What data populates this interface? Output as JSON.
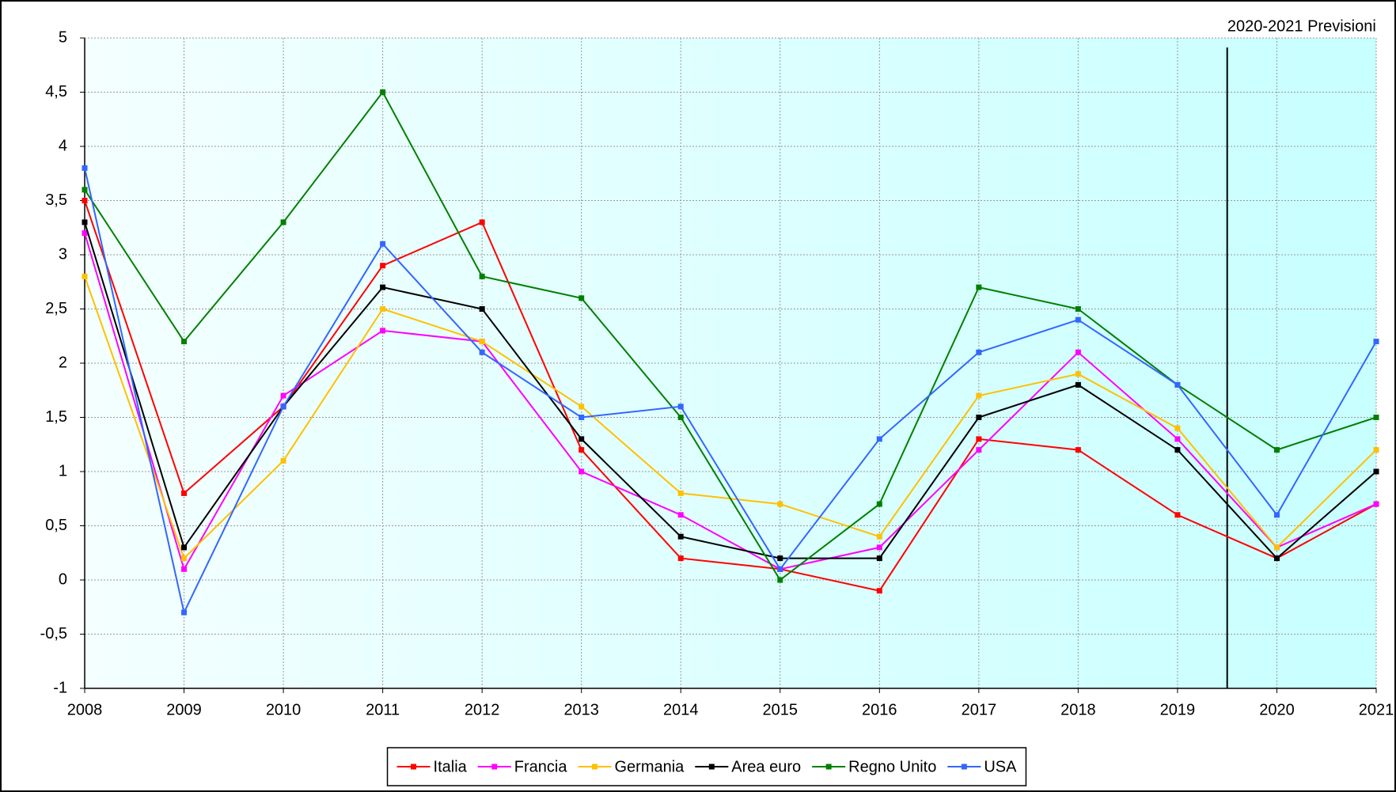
{
  "chart_data": {
    "type": "line",
    "x": [
      2008,
      2009,
      2010,
      2011,
      2012,
      2013,
      2014,
      2015,
      2016,
      2017,
      2018,
      2019,
      2020,
      2021
    ],
    "xlim": [
      2008,
      2021
    ],
    "xticks": [
      2008,
      2009,
      2010,
      2011,
      2012,
      2013,
      2014,
      2015,
      2016,
      2017,
      2018,
      2019,
      2020,
      2021
    ],
    "ylim": [
      -1,
      5
    ],
    "yticks": [
      -1,
      {
        "value": -0.5,
        "label": "-0,5"
      },
      0,
      {
        "value": 0.5,
        "label": "0,5"
      },
      1,
      {
        "value": 1.5,
        "label": "1,5"
      },
      2,
      {
        "value": 2.5,
        "label": "2,5"
      },
      3,
      {
        "value": 3.5,
        "label": "3,5"
      },
      4,
      {
        "value": 4.5,
        "label": "4,5"
      },
      5
    ],
    "grid": true,
    "legend": "bottom",
    "annotation": {
      "text": "2020-2021 Previsioni",
      "x": 2019.5
    },
    "series": [
      {
        "name": "Italia",
        "color": "#ff0000",
        "values": [
          3.5,
          0.8,
          1.6,
          2.9,
          3.3,
          1.2,
          0.2,
          0.1,
          -0.1,
          1.3,
          1.2,
          0.6,
          0.2,
          0.7
        ]
      },
      {
        "name": "Francia",
        "color": "#ff00ff",
        "values": [
          3.2,
          0.1,
          1.7,
          2.3,
          2.2,
          1.0,
          0.6,
          0.1,
          0.3,
          1.2,
          2.1,
          1.3,
          0.3,
          0.7
        ]
      },
      {
        "name": "Germania",
        "color": "#ffc000",
        "values": [
          2.8,
          0.2,
          1.1,
          2.5,
          2.2,
          1.6,
          0.8,
          0.7,
          0.4,
          1.7,
          1.9,
          1.4,
          0.3,
          1.2
        ]
      },
      {
        "name": "Area euro",
        "color": "#000000",
        "values": [
          3.3,
          0.3,
          1.6,
          2.7,
          2.5,
          1.3,
          0.4,
          0.2,
          0.2,
          1.5,
          1.8,
          1.2,
          0.2,
          1.0
        ]
      },
      {
        "name": "Regno Unito",
        "color": "#008000",
        "values": [
          3.6,
          2.2,
          3.3,
          4.5,
          2.8,
          2.6,
          1.5,
          0.0,
          0.7,
          2.7,
          2.5,
          1.8,
          1.2,
          1.5
        ]
      },
      {
        "name": "USA",
        "color": "#3366ff",
        "values": [
          3.8,
          -0.3,
          1.6,
          3.1,
          2.1,
          1.5,
          1.6,
          0.1,
          1.3,
          2.1,
          2.4,
          1.8,
          0.6,
          2.2
        ]
      }
    ]
  }
}
